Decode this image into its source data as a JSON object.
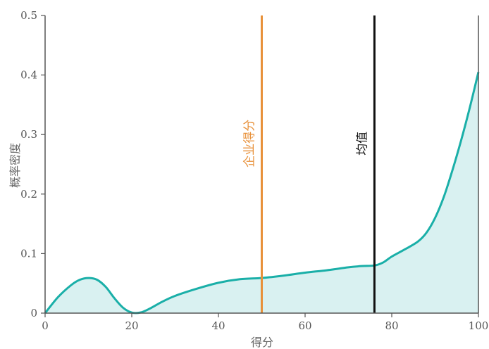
{
  "chart_data": {
    "type": "area",
    "xlabel": "得分",
    "ylabel": "概率密度",
    "xlim": [
      0,
      100
    ],
    "ylim": [
      0,
      0.5
    ],
    "x_ticks": [
      "0",
      "20",
      "40",
      "60",
      "80",
      "100"
    ],
    "y_ticks": [
      "0",
      "0.1",
      "0.2",
      "0.3",
      "0.4",
      "0.5"
    ],
    "grid": false,
    "series": [
      {
        "color": "#1aafa8",
        "fill": "#d9f1f1",
        "x": [
          0,
          3,
          6,
          8,
          10,
          12,
          14,
          16,
          18,
          20,
          22,
          24,
          27,
          30,
          35,
          40,
          45,
          50,
          55,
          60,
          65,
          70,
          73,
          76,
          78,
          80,
          83,
          86,
          88,
          90,
          92,
          94,
          96,
          98,
          100
        ],
        "y": [
          0.0,
          0.027,
          0.047,
          0.056,
          0.059,
          0.056,
          0.044,
          0.025,
          0.009,
          0.001,
          0.001,
          0.007,
          0.019,
          0.029,
          0.041,
          0.051,
          0.057,
          0.059,
          0.063,
          0.068,
          0.072,
          0.077,
          0.079,
          0.08,
          0.085,
          0.095,
          0.107,
          0.12,
          0.135,
          0.16,
          0.195,
          0.24,
          0.29,
          0.345,
          0.405
        ]
      }
    ],
    "vlines": [
      {
        "x": 50,
        "label": "企业得分",
        "color": "#e8913a"
      },
      {
        "x": 76,
        "label": "均值",
        "color": "#111111"
      }
    ]
  }
}
